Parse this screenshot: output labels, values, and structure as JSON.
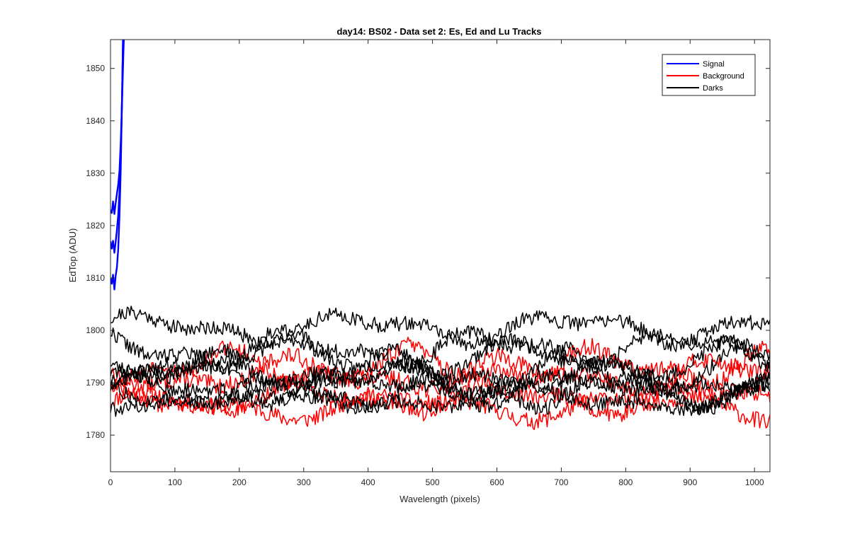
{
  "chart_data": {
    "type": "line",
    "title": "day14: BS02 - Data set 2: Es, Ed and Lu Tracks",
    "xlabel": "Wavelength (pixels)",
    "ylabel": "EdTop (ADU)",
    "xlim": [
      0,
      1024
    ],
    "ylim": [
      1773,
      1855.5
    ],
    "x_ticks": [
      0,
      100,
      200,
      300,
      400,
      500,
      600,
      700,
      800,
      900,
      1000
    ],
    "y_ticks": [
      1780,
      1790,
      1800,
      1810,
      1820,
      1830,
      1840,
      1850
    ],
    "grid": false,
    "legend_position": "top-right",
    "legend": [
      {
        "label": "Signal",
        "color": "#0000ff"
      },
      {
        "label": "Background",
        "color": "#ff0000"
      },
      {
        "label": "Darks",
        "color": "#000000"
      }
    ],
    "x_step": 2,
    "series": [
      {
        "group": "Signal",
        "color": "#0000ff",
        "x": [
          0,
          2,
          4,
          6,
          8,
          10,
          12,
          14,
          16,
          18,
          20,
          22
        ],
        "values": [
          1823.0,
          1822.4,
          1824.6,
          1822.2,
          1824.3,
          1826.1,
          1827.8,
          1830.5,
          1836.0,
          1844.0,
          1853.0,
          1860.0
        ]
      },
      {
        "group": "Signal",
        "color": "#0000ff",
        "x": [
          0,
          2,
          4,
          6,
          8,
          10,
          12,
          14,
          16,
          18,
          20
        ],
        "values": [
          1817.0,
          1815.6,
          1817.1,
          1814.8,
          1816.9,
          1819.2,
          1822.0,
          1826.5,
          1833.5,
          1845.0,
          1860.0
        ]
      },
      {
        "group": "Signal",
        "color": "#0000ff",
        "x": [
          0,
          2,
          4,
          6,
          8,
          10,
          12,
          14,
          16,
          18,
          20
        ],
        "values": [
          1810.0,
          1808.9,
          1810.6,
          1807.8,
          1810.4,
          1812.1,
          1815.5,
          1822.0,
          1831.0,
          1845.5,
          1860.0
        ]
      },
      {
        "group": "Background",
        "color": "#ff0000",
        "wave": {
          "base": 1785.5,
          "amp": 1.8,
          "period": 380,
          "phase": 0.3,
          "noise": 1.6,
          "seed": 11
        }
      },
      {
        "group": "Background",
        "color": "#ff0000",
        "wave": {
          "base": 1787.0,
          "amp": 2.0,
          "period": 310,
          "phase": 1.7,
          "noise": 1.6,
          "seed": 12
        }
      },
      {
        "group": "Background",
        "color": "#ff0000",
        "wave": {
          "base": 1791.5,
          "amp": 2.3,
          "period": 340,
          "phase": 2.6,
          "noise": 1.7,
          "seed": 13
        }
      },
      {
        "group": "Background",
        "color": "#ff0000",
        "wave": {
          "base": 1793.0,
          "amp": 2.5,
          "period": 290,
          "phase": 4.1,
          "noise": 1.7,
          "seed": 14
        }
      },
      {
        "group": "Darks",
        "color": "#000000",
        "wave": {
          "base": 1800.5,
          "amp": 2.0,
          "period": 330,
          "phase": 0.5,
          "noise": 1.4,
          "seed": 21
        }
      },
      {
        "group": "Darks",
        "color": "#000000",
        "wave": {
          "base": 1796.5,
          "amp": 2.4,
          "period": 300,
          "phase": 1.9,
          "noise": 1.4,
          "seed": 22
        }
      },
      {
        "group": "Darks",
        "color": "#000000",
        "wave": {
          "base": 1794.5,
          "amp": 2.4,
          "period": 360,
          "phase": 3.0,
          "noise": 1.4,
          "seed": 23
        }
      },
      {
        "group": "Darks",
        "color": "#000000",
        "wave": {
          "base": 1792.5,
          "amp": 2.6,
          "period": 280,
          "phase": 4.4,
          "noise": 1.4,
          "seed": 24
        }
      },
      {
        "group": "Darks",
        "color": "#000000",
        "wave": {
          "base": 1790.5,
          "amp": 2.3,
          "period": 320,
          "phase": 5.5,
          "noise": 1.4,
          "seed": 25
        }
      },
      {
        "group": "Darks",
        "color": "#000000",
        "wave": {
          "base": 1789.0,
          "amp": 2.2,
          "period": 350,
          "phase": 0.9,
          "noise": 1.4,
          "seed": 26
        }
      },
      {
        "group": "Darks",
        "color": "#000000",
        "wave": {
          "base": 1788.0,
          "amp": 2.0,
          "period": 270,
          "phase": 2.2,
          "noise": 1.4,
          "seed": 27
        }
      },
      {
        "group": "Darks",
        "color": "#000000",
        "wave": {
          "base": 1787.0,
          "amp": 1.8,
          "period": 390,
          "phase": 3.7,
          "noise": 1.4,
          "seed": 28
        }
      }
    ]
  }
}
